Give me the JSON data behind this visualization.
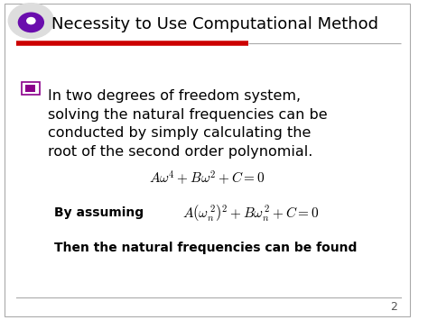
{
  "title": "Necessity to Use Computational Method",
  "title_fontsize": 13,
  "title_color": "#000000",
  "bg_color": "#ffffff",
  "slide_border_color": "#cccccc",
  "red_bar_color": "#cc0000",
  "gray_bar_color": "#888888",
  "bullet_text": "In two degrees of freedom system,\nsolving the natural frequencies can be\nconducted by simply calculating the\nroot of the second order polynomial.",
  "bullet_text_fontsize": 11.5,
  "bullet_color": "#8B008B",
  "eq1": "$A\\omega^4 + B\\omega^2 + C = 0$",
  "eq1_fontsize": 11,
  "eq2_label": "By assuming",
  "eq2_label_fontsize": 10,
  "eq2": "$A\\left(\\omega_n^{\\,2}\\right)^2 + B\\omega_n^{\\,2} + C = 0$",
  "eq2_fontsize": 11,
  "footer_text": "Then the natural frequencies can be found",
  "footer_fontsize": 10,
  "page_number": "2",
  "page_number_fontsize": 9
}
